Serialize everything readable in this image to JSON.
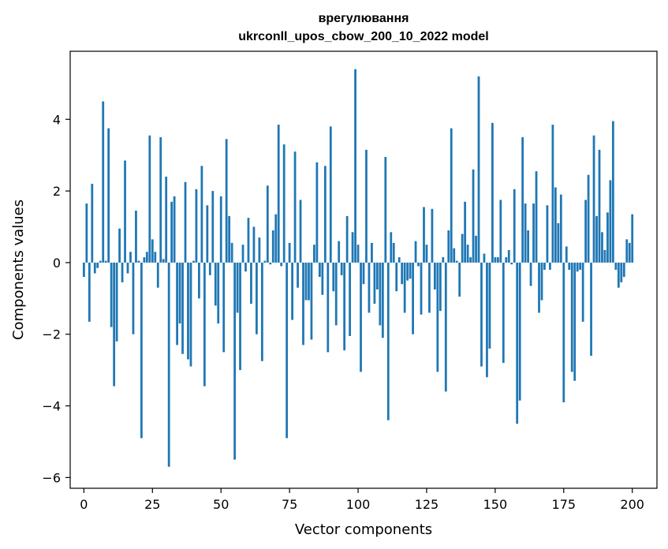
{
  "chart_data": {
    "type": "bar",
    "title_line1": "врегулювання",
    "title_line2": "ukrconll_upos_cbow_200_10_2022 model",
    "xlabel": "Vector components",
    "ylabel": "Components values",
    "xlim": [
      -5,
      209
    ],
    "ylim": [
      -6.3,
      5.9
    ],
    "xticks": [
      0,
      25,
      50,
      75,
      100,
      125,
      150,
      175,
      200
    ],
    "xtick_labels": [
      "0",
      "25",
      "50",
      "75",
      "100",
      "125",
      "150",
      "175",
      "200"
    ],
    "yticks": [
      -6,
      -4,
      -2,
      0,
      2,
      4
    ],
    "ytick_labels": [
      "−6",
      "−4",
      "−2",
      "0",
      "2",
      "4"
    ],
    "bar_color": "#1f77b4",
    "grid": false,
    "legend": "none",
    "values": [
      -0.4,
      1.65,
      -1.65,
      2.2,
      -0.3,
      -0.15,
      0.05,
      4.5,
      0.05,
      3.75,
      -1.8,
      -3.45,
      -2.2,
      0.95,
      -0.55,
      2.85,
      -0.3,
      0.3,
      -2.0,
      1.45,
      0.05,
      -4.9,
      0.15,
      0.3,
      3.55,
      0.65,
      0.3,
      -0.7,
      3.5,
      0.1,
      2.4,
      -5.7,
      1.7,
      1.85,
      -2.3,
      -1.7,
      -2.55,
      2.25,
      -2.7,
      -2.9,
      0.05,
      2.05,
      -1.0,
      2.7,
      -3.45,
      1.6,
      -0.35,
      2.0,
      -1.2,
      -1.7,
      1.85,
      -2.5,
      3.45,
      1.3,
      0.55,
      -5.5,
      -1.4,
      -3.0,
      0.5,
      -0.25,
      1.25,
      -1.15,
      1.0,
      -2.0,
      0.7,
      -2.75,
      0.05,
      2.15,
      -0.05,
      0.9,
      1.35,
      3.85,
      -0.1,
      3.3,
      -4.9,
      0.55,
      -1.6,
      3.1,
      -0.7,
      1.75,
      -2.3,
      -1.05,
      -1.05,
      -2.15,
      0.5,
      2.8,
      -0.4,
      -0.9,
      2.7,
      -2.5,
      3.8,
      -0.8,
      -1.75,
      0.6,
      -0.35,
      -2.45,
      1.3,
      -2.05,
      0.85,
      5.4,
      0.5,
      -3.05,
      -0.6,
      3.15,
      -1.4,
      0.55,
      -1.15,
      -0.75,
      -1.75,
      -2.1,
      2.95,
      -4.4,
      0.85,
      0.55,
      -0.8,
      0.15,
      -0.6,
      -1.4,
      -0.5,
      -0.45,
      -2.0,
      0.6,
      -0.1,
      -1.45,
      1.55,
      0.5,
      -1.4,
      1.5,
      -0.75,
      -3.05,
      -1.35,
      0.15,
      -3.6,
      0.9,
      3.75,
      0.4,
      0.05,
      -0.95,
      0.8,
      1.7,
      0.5,
      0.15,
      2.6,
      0.75,
      5.2,
      -2.9,
      0.25,
      -3.2,
      -2.4,
      3.9,
      0.15,
      0.15,
      1.75,
      -2.8,
      0.15,
      0.35,
      -0.05,
      2.05,
      -4.5,
      -3.85,
      3.5,
      1.65,
      0.9,
      -0.65,
      1.65,
      2.55,
      -1.4,
      -1.05,
      -0.2,
      1.6,
      -0.2,
      3.85,
      2.1,
      1.1,
      1.9,
      -3.9,
      0.45,
      -0.2,
      -3.05,
      -3.3,
      -0.25,
      -0.2,
      -1.65,
      1.75,
      2.45,
      -2.6,
      3.55,
      1.3,
      3.15,
      0.85,
      0.35,
      1.4,
      2.3,
      3.95,
      -0.2,
      -0.7,
      -0.55,
      -0.4,
      0.65,
      0.55,
      1.35
    ]
  }
}
